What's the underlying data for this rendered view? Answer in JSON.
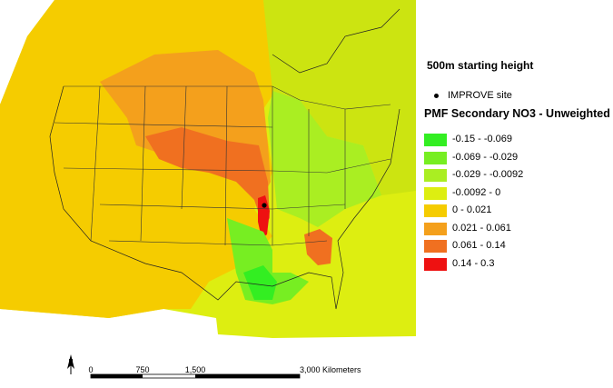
{
  "map": {
    "subtitle": "500m starting height",
    "site_marker_label": "IMPROVE site",
    "legend_title": "PMF Secondary NO3 - Unweighted",
    "legend": [
      {
        "label": "-0.15 - -0.069",
        "color": "#33ee22"
      },
      {
        "label": "-0.069 - -0.029",
        "color": "#77ee22"
      },
      {
        "label": "-0.029 - -0.0092",
        "color": "#aaee22"
      },
      {
        "label": "-0.0092 - 0",
        "color": "#ddee11"
      },
      {
        "label": "0 - 0.021",
        "color": "#f5cc00"
      },
      {
        "label": "0.021 - 0.061",
        "color": "#f4a01c"
      },
      {
        "label": "0.061 - 0.14",
        "color": "#f07020"
      },
      {
        "label": "0.14 - 0.3",
        "color": "#ee1111"
      }
    ],
    "north_arrow": "N",
    "scale": {
      "ticks": [
        "0",
        "750",
        "1,500",
        "3,000 Kilometers"
      ]
    },
    "icons": [
      "north-arrow-icon",
      "site-dot-icon"
    ]
  }
}
